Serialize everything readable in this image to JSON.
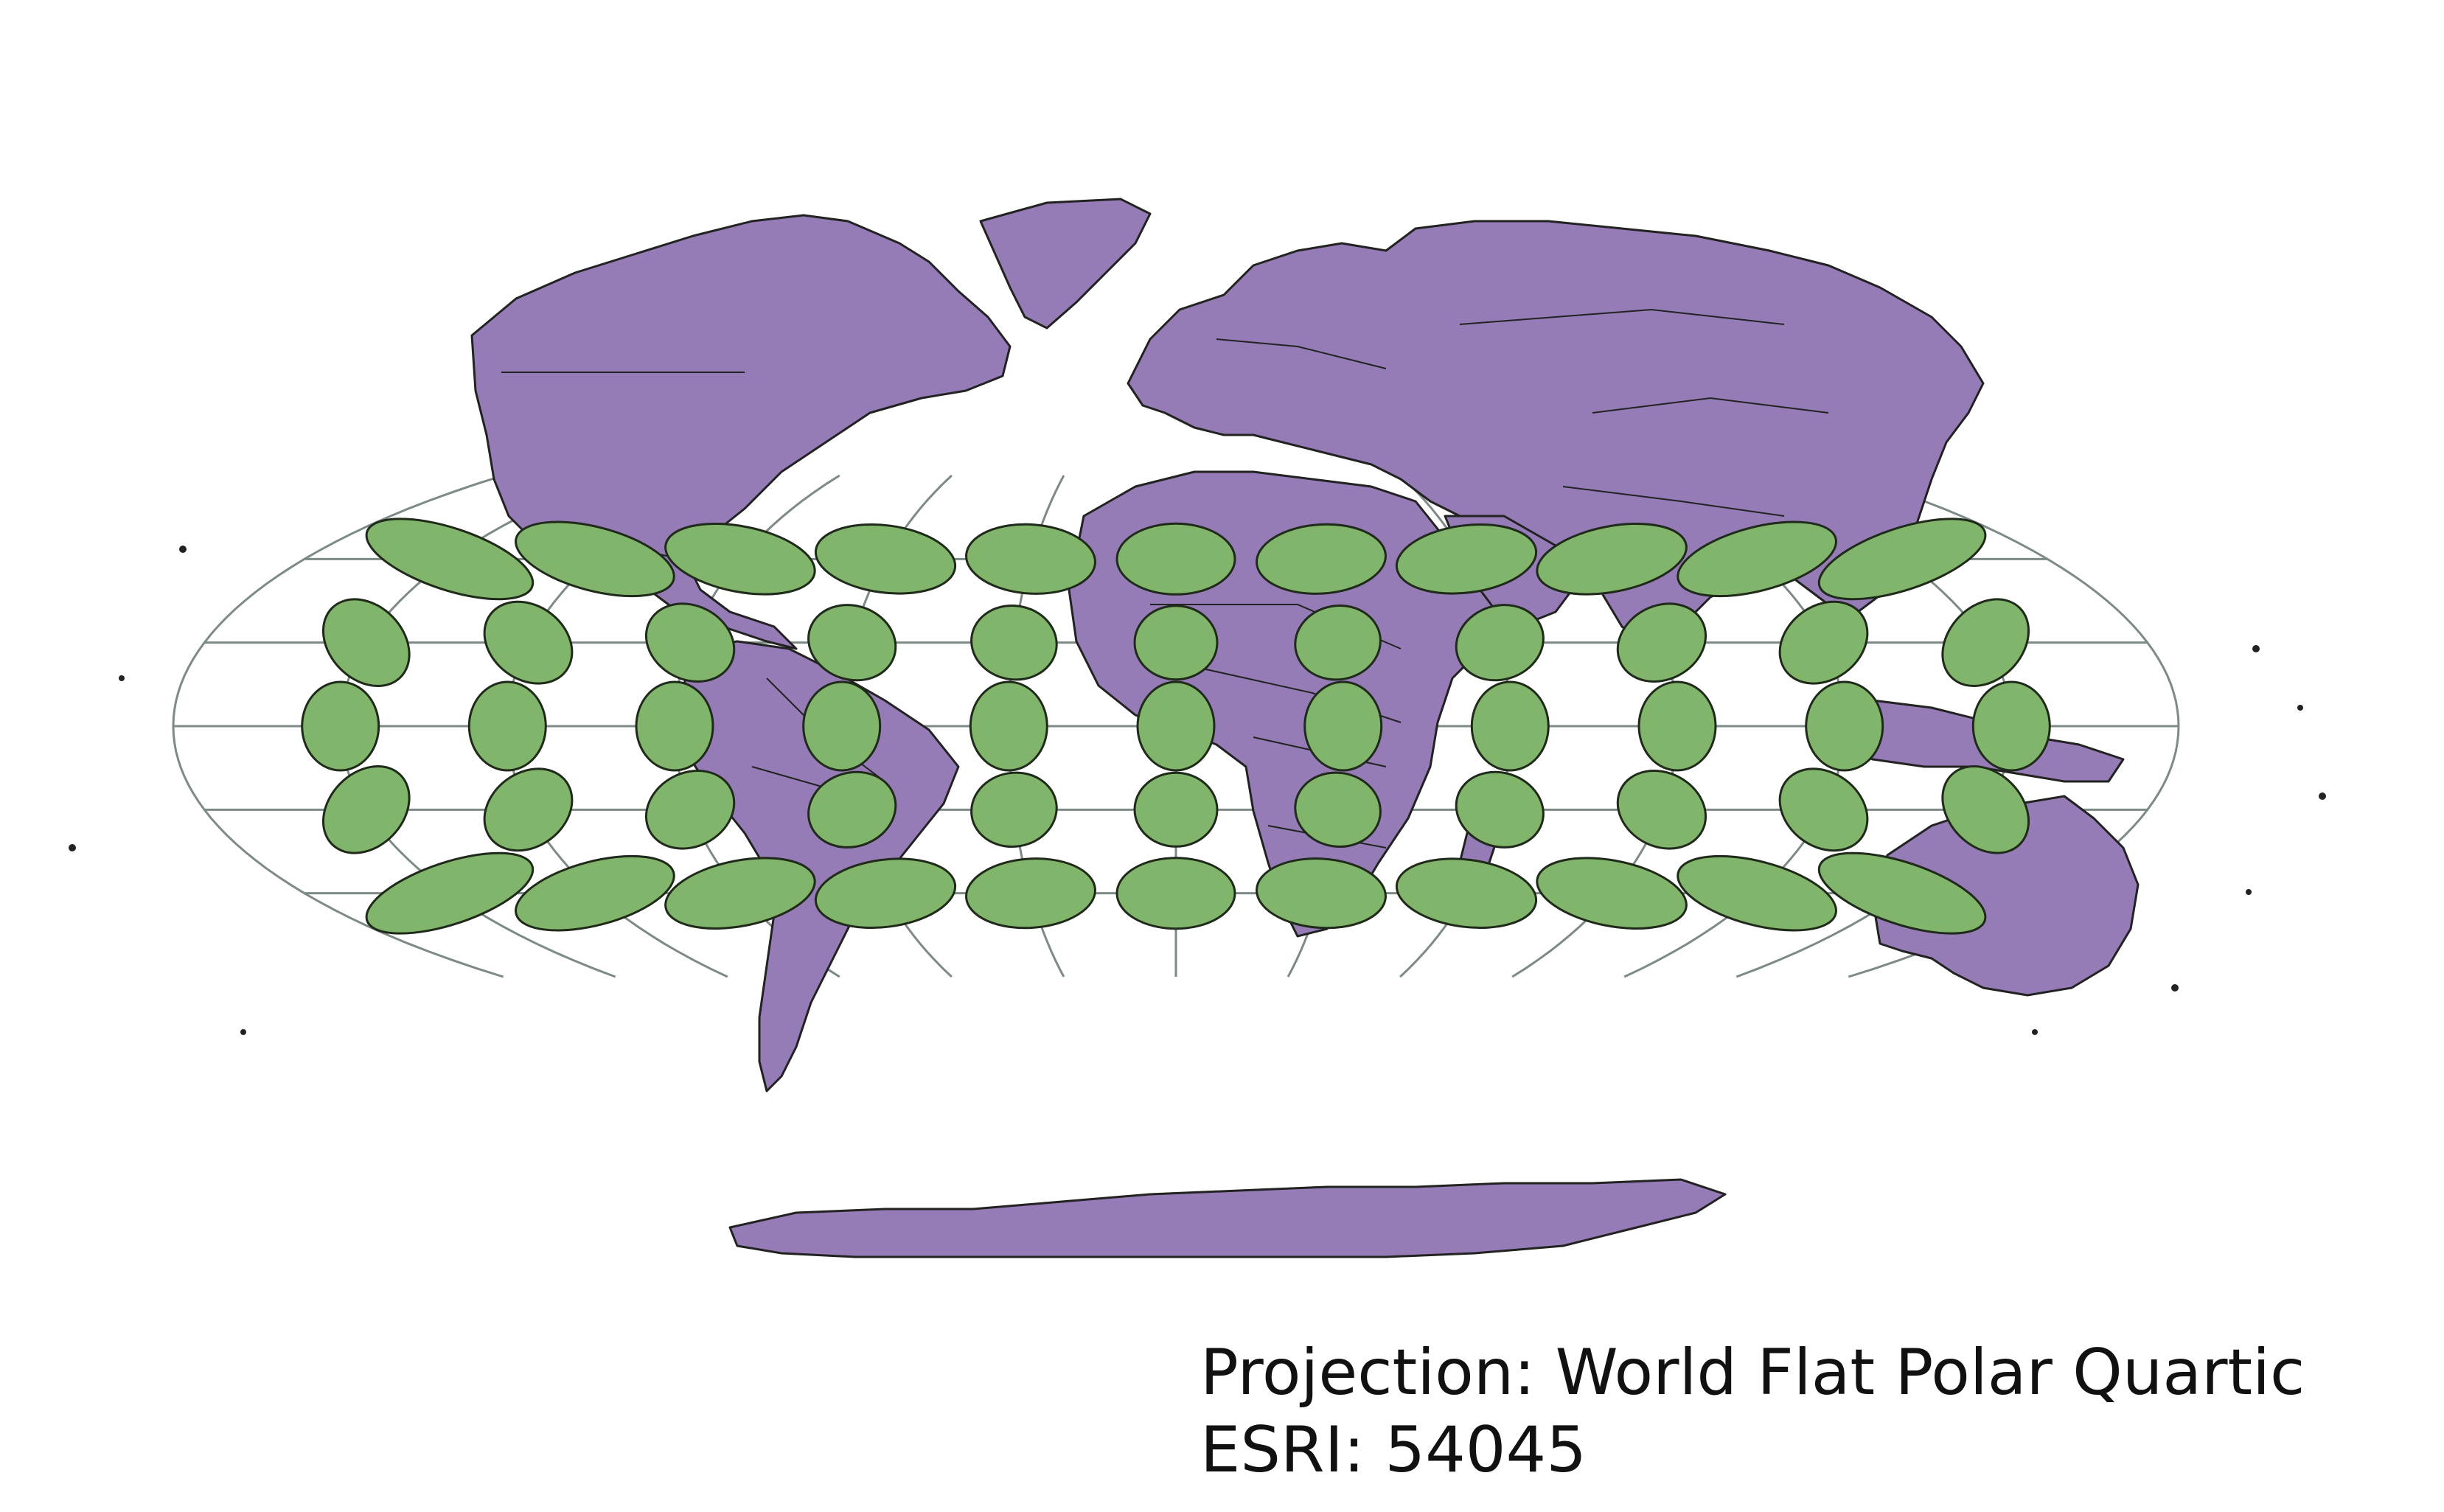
{
  "map": {
    "projection_label": "Projection: World Flat Polar Quartic",
    "code_label": "ESRI: 54045",
    "colors": {
      "land": "#957cb6",
      "tissot_indicatrix": "#82b56c",
      "graticule": "#7d8a86",
      "outline": "#222222"
    },
    "graticule": {
      "meridians_deg": [
        -180,
        -150,
        -120,
        -90,
        -60,
        -30,
        0,
        30,
        60,
        90,
        120,
        150,
        180
      ],
      "parallels_deg": [
        -60,
        -30,
        0,
        30,
        60
      ]
    },
    "tissot_indicatrices": {
      "latitudes_deg": [
        60,
        30,
        0,
        -30,
        -60
      ],
      "longitudes_deg": [
        -150,
        -120,
        -90,
        -60,
        -30,
        0,
        30,
        60,
        90,
        120,
        150
      ]
    }
  }
}
